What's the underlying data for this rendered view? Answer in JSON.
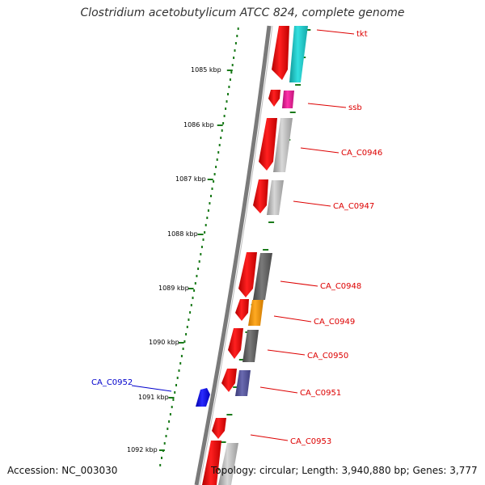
{
  "title": "Clostridium acetobutylicum ATCC 824, complete genome",
  "accession": "Accession: NC_003030",
  "topology": "Topology: circular; Length: 3,940,880 bp; Genes: 3,777",
  "colors": {
    "forward_strand": "#ee0000",
    "label_red": "#dd0000",
    "label_blue": "#0000cc",
    "backbone": "#7a7a7a",
    "tick": "#1a7a1a"
  },
  "scale_labels": [
    {
      "text": "1085 kbp"
    },
    {
      "text": "1086 kbp"
    },
    {
      "text": "1087 kbp"
    },
    {
      "text": "1088 kbp"
    },
    {
      "text": "1089 kbp"
    },
    {
      "text": "1090 kbp"
    },
    {
      "text": "1091 kbp"
    },
    {
      "text": "1092 kbp"
    }
  ],
  "gene_labels": [
    {
      "text": "tkt",
      "color": "red"
    },
    {
      "text": "ssb",
      "color": "red"
    },
    {
      "text": "CA_C0946",
      "color": "red"
    },
    {
      "text": "CA_C0947",
      "color": "red"
    },
    {
      "text": "CA_C0948",
      "color": "red"
    },
    {
      "text": "CA_C0949",
      "color": "red"
    },
    {
      "text": "CA_C0950",
      "color": "red"
    },
    {
      "text": "CA_C0951",
      "color": "red"
    },
    {
      "text": "CA_C0952",
      "color": "blue"
    },
    {
      "text": "CA_C0953",
      "color": "red"
    }
  ],
  "function_track_colors": [
    "#22cccc",
    "#ee2299",
    "#bbbbbb",
    "#c4c4c4",
    "#666666",
    "#ff9900",
    "#6a6a6a",
    "#555599",
    "#c0c0c0"
  ]
}
